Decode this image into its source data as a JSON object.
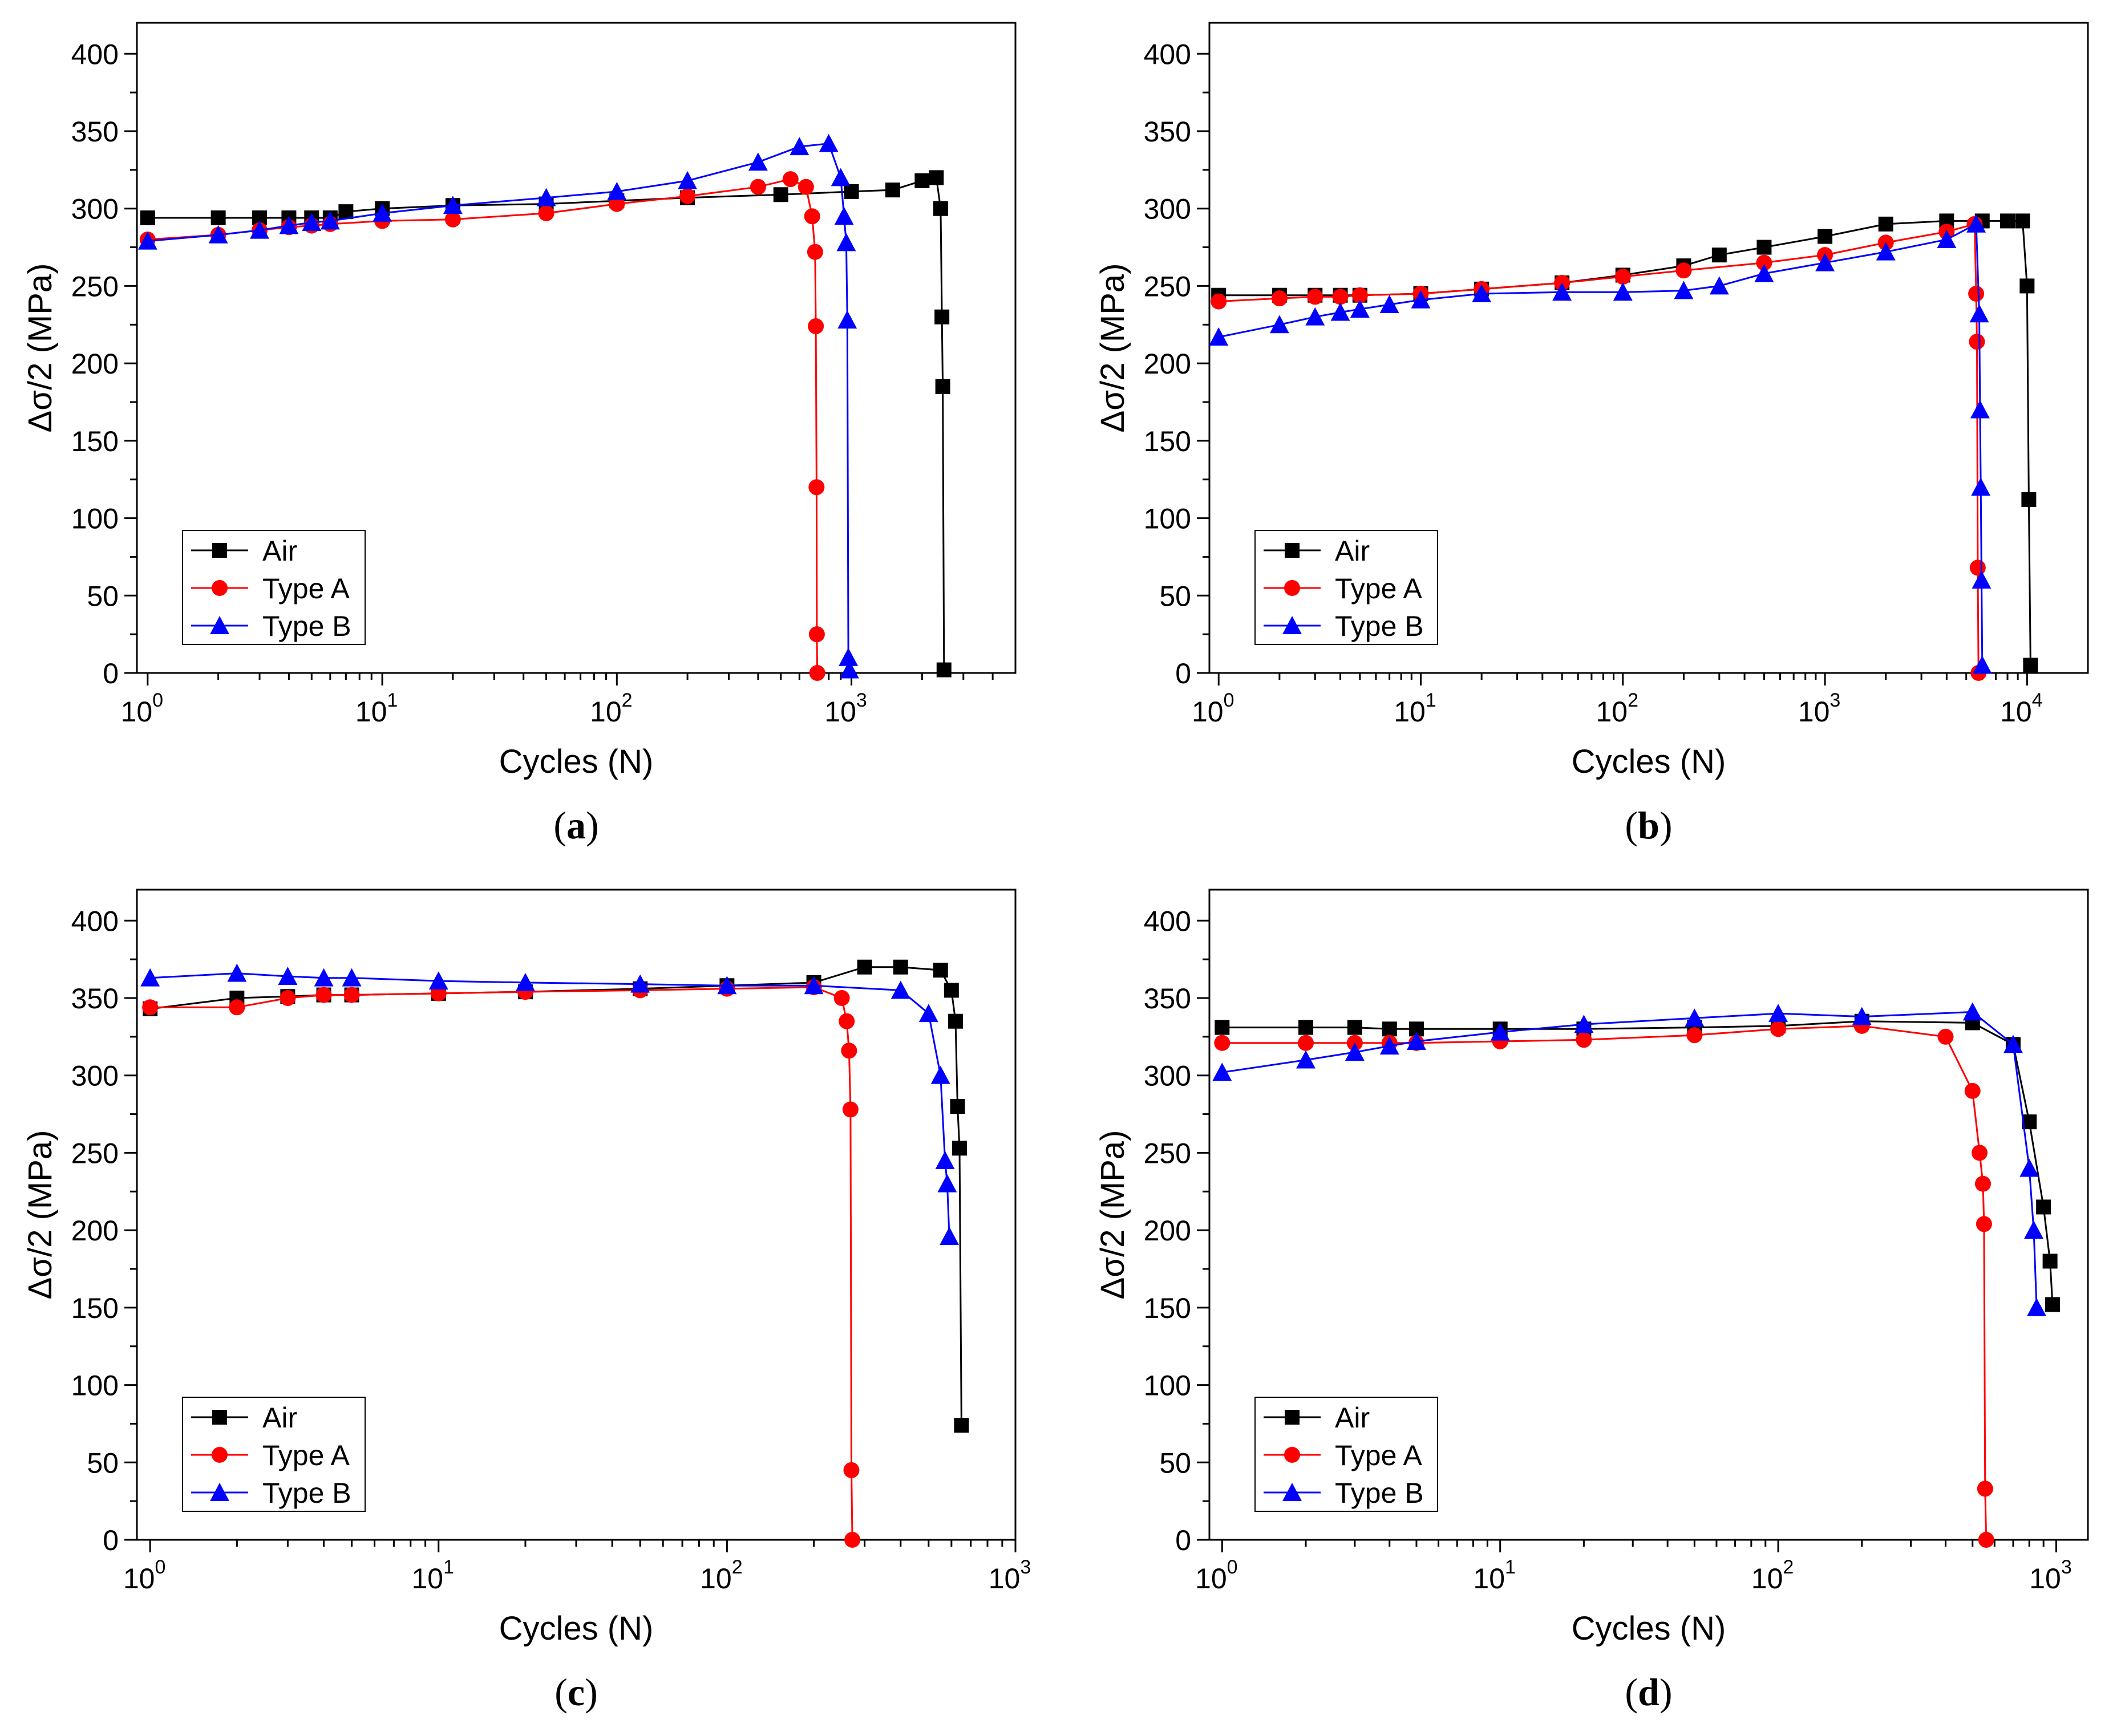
{
  "figure": {
    "panels": [
      {
        "id": "a",
        "caption_letter": "a"
      },
      {
        "id": "b",
        "caption_letter": "b"
      },
      {
        "id": "c",
        "caption_letter": "c"
      },
      {
        "id": "d",
        "caption_letter": "d"
      }
    ]
  },
  "colors": {
    "air": "#000000",
    "type_a": "#ff0000",
    "type_b": "#0000ff"
  },
  "chart_data": [
    {
      "id": "a",
      "type": "line",
      "title": "",
      "xlabel": "Cycles (N)",
      "ylabel": "Δσ/2 (MPa)",
      "xscale": "log",
      "xlim": [
        0.9,
        5000
      ],
      "ylim": [
        0,
        420
      ],
      "xticks": [
        {
          "base": "10",
          "exp": "0"
        },
        {
          "base": "10",
          "exp": "1"
        },
        {
          "base": "10",
          "exp": "2"
        },
        {
          "base": "10",
          "exp": "3"
        }
      ],
      "yticks": [
        "0",
        "50",
        "100",
        "150",
        "200",
        "250",
        "300",
        "350",
        "400"
      ],
      "legend": {
        "position": "lower-left",
        "entries": [
          "Air",
          "Type A",
          "Type B"
        ]
      },
      "series": [
        {
          "name": "Air",
          "marker": "square",
          "color": "#000000",
          "x": [
            1,
            2,
            3,
            4,
            5,
            6,
            7,
            10,
            20,
            50,
            100,
            200,
            500,
            1000,
            1500,
            2000,
            2300,
            2400,
            2430,
            2450,
            2480
          ],
          "y": [
            294,
            294,
            294,
            294,
            294,
            294,
            298,
            300,
            302,
            303,
            305,
            307,
            309,
            311,
            312,
            318,
            320,
            300,
            230,
            185,
            2
          ]
        },
        {
          "name": "Type A",
          "marker": "circle",
          "color": "#ff0000",
          "x": [
            1,
            2,
            3,
            4,
            5,
            6,
            10,
            20,
            50,
            100,
            200,
            400,
            550,
            640,
            680,
            700,
            705,
            710,
            712,
            715
          ],
          "y": [
            280,
            283,
            286,
            288,
            289,
            290,
            292,
            293,
            297,
            303,
            308,
            314,
            319,
            314,
            295,
            272,
            224,
            120,
            25,
            0
          ]
        },
        {
          "name": "Type B",
          "marker": "triangle",
          "color": "#0000ff",
          "x": [
            1,
            2,
            3,
            4,
            5,
            6,
            10,
            20,
            50,
            100,
            200,
            400,
            600,
            800,
            900,
            930,
            950,
            960,
            970,
            980
          ],
          "y": [
            279,
            283,
            286,
            289,
            291,
            292,
            297,
            302,
            307,
            311,
            318,
            330,
            340,
            342,
            320,
            295,
            278,
            228,
            10,
            2
          ]
        }
      ]
    },
    {
      "id": "b",
      "type": "line",
      "title": "",
      "xlabel": "Cycles (N)",
      "ylabel": "Δσ/2 (MPa)",
      "xscale": "log",
      "xlim": [
        0.9,
        20000
      ],
      "ylim": [
        0,
        420
      ],
      "xticks": [
        {
          "base": "10",
          "exp": "0"
        },
        {
          "base": "10",
          "exp": "1"
        },
        {
          "base": "10",
          "exp": "2"
        },
        {
          "base": "10",
          "exp": "3"
        },
        {
          "base": "10",
          "exp": "4"
        }
      ],
      "yticks": [
        "0",
        "50",
        "100",
        "150",
        "200",
        "250",
        "300",
        "350",
        "400"
      ],
      "legend": {
        "position": "lower-left",
        "entries": [
          "Air",
          "Type A",
          "Type B"
        ]
      },
      "series": [
        {
          "name": "Air",
          "marker": "square",
          "color": "#000000",
          "x": [
            1,
            2,
            3,
            4,
            5,
            10,
            20,
            50,
            100,
            200,
            300,
            500,
            1000,
            2000,
            4000,
            6000,
            8000,
            9500,
            10000,
            10200,
            10400
          ],
          "y": [
            244,
            244,
            244,
            244,
            244,
            245,
            248,
            252,
            257,
            263,
            270,
            275,
            282,
            290,
            292,
            292,
            292,
            292,
            250,
            112,
            5
          ]
        },
        {
          "name": "Type A",
          "marker": "circle",
          "color": "#ff0000",
          "x": [
            1,
            2,
            3,
            4,
            5,
            10,
            20,
            50,
            100,
            200,
            500,
            1000,
            2000,
            4000,
            5500,
            5600,
            5650,
            5700,
            5750
          ],
          "y": [
            240,
            242,
            243,
            243,
            244,
            245,
            248,
            252,
            256,
            260,
            265,
            270,
            278,
            285,
            290,
            245,
            214,
            68,
            0
          ]
        },
        {
          "name": "Type B",
          "marker": "triangle",
          "color": "#0000ff",
          "x": [
            1,
            2,
            3,
            4,
            5,
            7,
            10,
            20,
            50,
            100,
            200,
            300,
            500,
            1000,
            2000,
            4000,
            5600,
            5800,
            5850,
            5900,
            5950,
            6000
          ],
          "y": [
            217,
            225,
            230,
            233,
            235,
            238,
            241,
            245,
            246,
            246,
            247,
            250,
            258,
            265,
            272,
            280,
            290,
            232,
            170,
            120,
            60,
            5
          ]
        }
      ]
    },
    {
      "id": "c",
      "type": "line",
      "title": "",
      "xlabel": "Cycles (N)",
      "ylabel": "Δσ/2 (MPa)",
      "xscale": "log",
      "xlim": [
        0.9,
        1000
      ],
      "ylim": [
        0,
        420
      ],
      "xticks": [
        {
          "base": "10",
          "exp": "0"
        },
        {
          "base": "10",
          "exp": "1"
        },
        {
          "base": "10",
          "exp": "2"
        },
        {
          "base": "10",
          "exp": "3"
        }
      ],
      "yticks": [
        "0",
        "50",
        "100",
        "150",
        "200",
        "250",
        "300",
        "350",
        "400"
      ],
      "legend": {
        "position": "lower-left",
        "entries": [
          "Air",
          "Type A",
          "Type B"
        ]
      },
      "series": [
        {
          "name": "Air",
          "marker": "square",
          "color": "#000000",
          "x": [
            1,
            2,
            3,
            4,
            5,
            10,
            20,
            50,
            100,
            200,
            300,
            400,
            550,
            600,
            620,
            630,
            640,
            650
          ],
          "y": [
            343,
            350,
            351,
            352,
            352,
            353,
            354,
            356,
            358,
            360,
            370,
            370,
            368,
            355,
            335,
            280,
            253,
            74
          ]
        },
        {
          "name": "Type A",
          "marker": "circle",
          "color": "#ff0000",
          "x": [
            1,
            2,
            3,
            4,
            5,
            10,
            20,
            50,
            100,
            200,
            250,
            260,
            265,
            268,
            270,
            272
          ],
          "y": [
            344,
            344,
            350,
            352,
            352,
            353,
            354,
            355,
            356,
            357,
            350,
            335,
            316,
            278,
            45,
            0
          ]
        },
        {
          "name": "Type B",
          "marker": "triangle",
          "color": "#0000ff",
          "x": [
            1,
            2,
            3,
            4,
            5,
            10,
            20,
            50,
            100,
            200,
            400,
            500,
            550,
            570,
            580,
            590
          ],
          "y": [
            363,
            366,
            364,
            363,
            363,
            361,
            360,
            359,
            358,
            358,
            355,
            340,
            300,
            245,
            230,
            196
          ]
        }
      ]
    },
    {
      "id": "d",
      "type": "line",
      "title": "",
      "xlabel": "Cycles (N)",
      "ylabel": "Δσ/2 (MPa)",
      "xscale": "log",
      "xlim": [
        0.9,
        1300
      ],
      "ylim": [
        0,
        420
      ],
      "xticks": [
        {
          "base": "10",
          "exp": "0"
        },
        {
          "base": "10",
          "exp": "1"
        },
        {
          "base": "10",
          "exp": "2"
        },
        {
          "base": "10",
          "exp": "3"
        }
      ],
      "yticks": [
        "0",
        "50",
        "100",
        "150",
        "200",
        "250",
        "300",
        "350",
        "400"
      ],
      "legend": {
        "position": "lower-left",
        "entries": [
          "Air",
          "Type A",
          "Type B"
        ]
      },
      "series": [
        {
          "name": "Air",
          "marker": "square",
          "color": "#000000",
          "x": [
            1,
            2,
            3,
            4,
            5,
            10,
            20,
            50,
            100,
            200,
            500,
            700,
            800,
            900,
            950,
            970
          ],
          "y": [
            331,
            331,
            331,
            330,
            330,
            330,
            330,
            331,
            332,
            335,
            334,
            320,
            270,
            215,
            180,
            152
          ]
        },
        {
          "name": "Type A",
          "marker": "circle",
          "color": "#ff0000",
          "x": [
            1,
            2,
            3,
            4,
            5,
            10,
            20,
            50,
            100,
            200,
            400,
            500,
            530,
            545,
            550,
            555,
            560
          ],
          "y": [
            321,
            321,
            321,
            321,
            321,
            322,
            323,
            326,
            330,
            332,
            325,
            290,
            250,
            230,
            204,
            33,
            0
          ]
        },
        {
          "name": "Type B",
          "marker": "triangle",
          "color": "#0000ff",
          "x": [
            1,
            2,
            3,
            4,
            5,
            10,
            20,
            50,
            100,
            200,
            500,
            700,
            800,
            830,
            850
          ],
          "y": [
            302,
            310,
            315,
            319,
            322,
            328,
            333,
            337,
            340,
            338,
            341,
            320,
            240,
            200,
            150
          ]
        }
      ]
    }
  ]
}
